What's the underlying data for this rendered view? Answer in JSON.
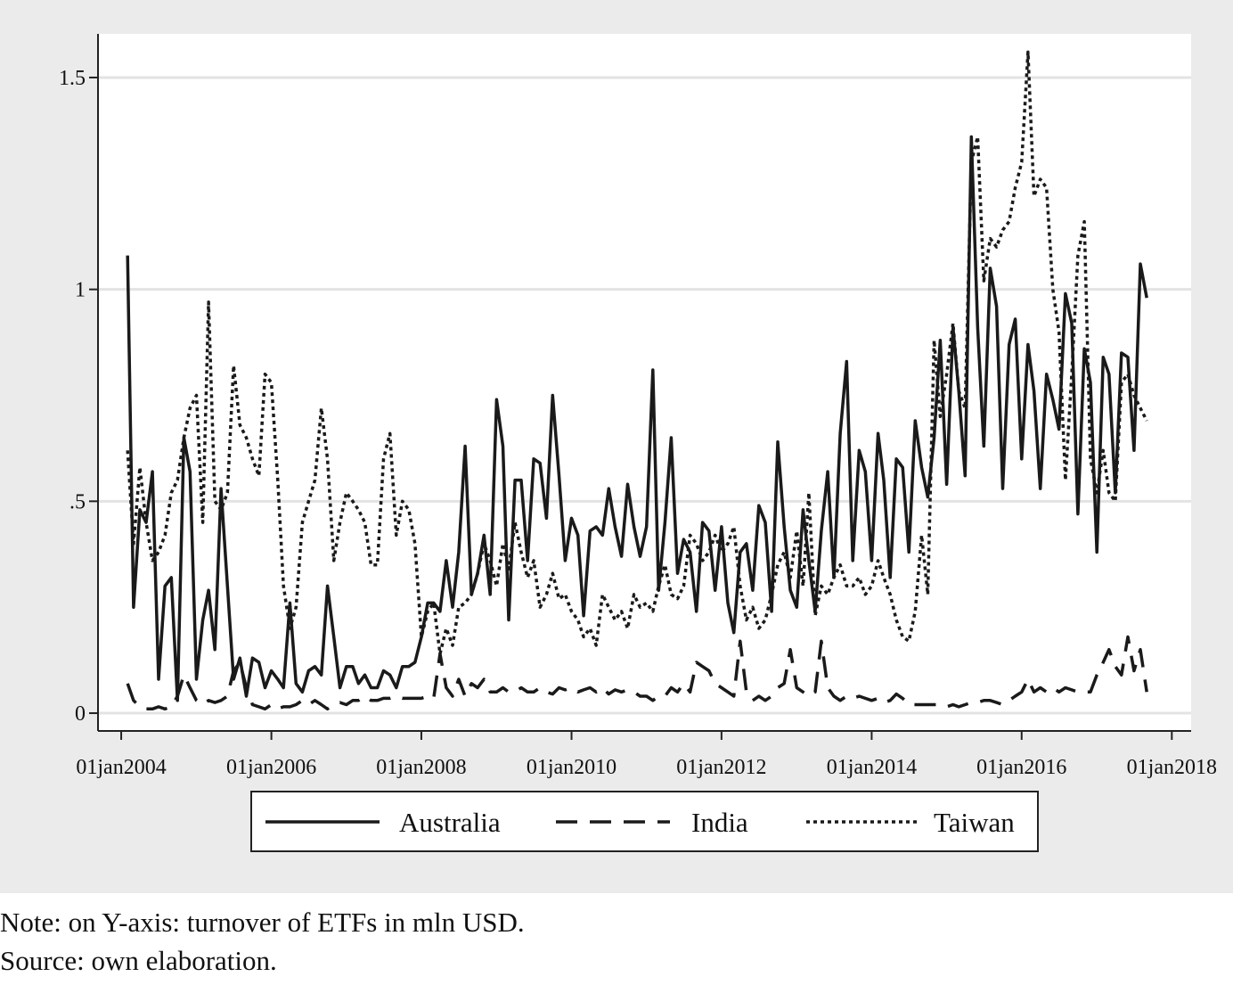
{
  "chart_data": {
    "type": "line",
    "notes": [
      "Note: on Y-axis: turnover of ETFs in mln USD.",
      "Source: own elaboration."
    ],
    "x": [
      "2004-02-01",
      "2004-03-01",
      "2004-04-01",
      "2004-05-01",
      "2004-06-01",
      "2004-07-01",
      "2004-08-01",
      "2004-09-01",
      "2004-10-01",
      "2004-11-01",
      "2004-12-01",
      "2005-01-01",
      "2005-02-01",
      "2005-03-01",
      "2005-04-01",
      "2005-05-01",
      "2005-06-01",
      "2005-07-01",
      "2005-08-01",
      "2005-09-01",
      "2005-10-01",
      "2005-11-01",
      "2005-12-01",
      "2006-01-01",
      "2006-02-01",
      "2006-03-01",
      "2006-04-01",
      "2006-05-01",
      "2006-06-01",
      "2006-07-01",
      "2006-08-01",
      "2006-09-01",
      "2006-10-01",
      "2006-11-01",
      "2006-12-01",
      "2007-01-01",
      "2007-02-01",
      "2007-03-01",
      "2007-04-01",
      "2007-05-01",
      "2007-06-01",
      "2007-07-01",
      "2007-08-01",
      "2007-09-01",
      "2007-10-01",
      "2007-11-01",
      "2007-12-01",
      "2008-01-01",
      "2008-02-01",
      "2008-03-01",
      "2008-04-01",
      "2008-05-01",
      "2008-06-01",
      "2008-07-01",
      "2008-08-01",
      "2008-09-01",
      "2008-10-01",
      "2008-11-01",
      "2008-12-01",
      "2009-01-01",
      "2009-02-01",
      "2009-03-01",
      "2009-04-01",
      "2009-05-01",
      "2009-06-01",
      "2009-07-01",
      "2009-08-01",
      "2009-09-01",
      "2009-10-01",
      "2009-11-01",
      "2009-12-01",
      "2010-01-01",
      "2010-02-01",
      "2010-03-01",
      "2010-04-01",
      "2010-05-01",
      "2010-06-01",
      "2010-07-01",
      "2010-08-01",
      "2010-09-01",
      "2010-10-01",
      "2010-11-01",
      "2010-12-01",
      "2011-01-01",
      "2011-02-01",
      "2011-03-01",
      "2011-04-01",
      "2011-05-01",
      "2011-06-01",
      "2011-07-01",
      "2011-08-01",
      "2011-09-01",
      "2011-10-01",
      "2011-11-01",
      "2011-12-01",
      "2012-01-01",
      "2012-02-01",
      "2012-03-01",
      "2012-04-01",
      "2012-05-01",
      "2012-06-01",
      "2012-07-01",
      "2012-08-01",
      "2012-09-01",
      "2012-10-01",
      "2012-11-01",
      "2012-12-01",
      "2013-01-01",
      "2013-02-01",
      "2013-03-01",
      "2013-04-01",
      "2013-05-01",
      "2013-06-01",
      "2013-07-01",
      "2013-08-01",
      "2013-09-01",
      "2013-10-01",
      "2013-11-01",
      "2013-12-01",
      "2014-01-01",
      "2014-02-01",
      "2014-03-01",
      "2014-04-01",
      "2014-05-01",
      "2014-06-01",
      "2014-07-01",
      "2014-08-01",
      "2014-09-01",
      "2014-10-01",
      "2014-11-01",
      "2014-12-01",
      "2015-01-01",
      "2015-02-01",
      "2015-03-01",
      "2015-04-01",
      "2015-05-01",
      "2015-06-01",
      "2015-07-01",
      "2015-08-01",
      "2015-09-01",
      "2015-10-01",
      "2015-11-01",
      "2015-12-01",
      "2016-01-01",
      "2016-02-01",
      "2016-03-01",
      "2016-04-01",
      "2016-05-01",
      "2016-06-01",
      "2016-07-01",
      "2016-08-01",
      "2016-09-01",
      "2016-10-01",
      "2016-11-01",
      "2016-12-01",
      "2017-01-01",
      "2017-02-01",
      "2017-03-01",
      "2017-04-01",
      "2017-05-01",
      "2017-06-01",
      "2017-07-01",
      "2017-08-01",
      "2017-09-01"
    ],
    "series": [
      {
        "name": "Australia",
        "color": "#1a1a1a",
        "dash": "solid",
        "values": [
          1.08,
          0.25,
          0.48,
          0.45,
          0.57,
          0.08,
          0.3,
          0.32,
          0.03,
          0.65,
          0.57,
          0.08,
          0.22,
          0.29,
          0.15,
          0.53,
          0.3,
          0.08,
          0.13,
          0.04,
          0.13,
          0.12,
          0.06,
          0.1,
          0.08,
          0.06,
          0.26,
          0.07,
          0.05,
          0.1,
          0.11,
          0.09,
          0.3,
          0.18,
          0.06,
          0.11,
          0.11,
          0.07,
          0.09,
          0.06,
          0.06,
          0.1,
          0.09,
          0.06,
          0.11,
          0.11,
          0.12,
          0.18,
          0.26,
          0.26,
          0.24,
          0.36,
          0.25,
          0.38,
          0.63,
          0.28,
          0.33,
          0.42,
          0.28,
          0.74,
          0.63,
          0.22,
          0.55,
          0.55,
          0.36,
          0.6,
          0.59,
          0.46,
          0.75,
          0.56,
          0.36,
          0.46,
          0.42,
          0.23,
          0.43,
          0.44,
          0.42,
          0.53,
          0.44,
          0.37,
          0.54,
          0.44,
          0.37,
          0.44,
          0.81,
          0.29,
          0.45,
          0.65,
          0.33,
          0.41,
          0.38,
          0.24,
          0.45,
          0.43,
          0.29,
          0.44,
          0.26,
          0.19,
          0.38,
          0.4,
          0.29,
          0.49,
          0.45,
          0.24,
          0.64,
          0.44,
          0.29,
          0.25,
          0.48,
          0.36,
          0.24,
          0.43,
          0.57,
          0.32,
          0.66,
          0.83,
          0.36,
          0.62,
          0.57,
          0.36,
          0.66,
          0.55,
          0.32,
          0.6,
          0.58,
          0.38,
          0.69,
          0.58,
          0.51,
          0.65,
          0.88,
          0.54,
          0.91,
          0.76,
          0.56,
          1.36,
          0.91,
          0.63,
          1.05,
          0.96,
          0.53,
          0.87,
          0.93,
          0.6,
          0.87,
          0.76,
          0.53,
          0.8,
          0.74,
          0.67,
          0.99,
          0.92,
          0.47,
          0.86,
          0.78,
          0.38,
          0.84,
          0.8,
          0.52,
          0.85,
          0.84,
          0.62,
          1.06,
          0.98
        ]
      },
      {
        "name": "India",
        "color": "#1a1a1a",
        "dash": "dashed",
        "values": [
          0.07,
          0.03,
          0.015,
          0.01,
          0.01,
          0.015,
          0.01,
          0.015,
          0.04,
          0.09,
          0.06,
          0.03,
          0.02,
          0.03,
          0.025,
          0.03,
          0.04,
          0.1,
          0.12,
          0.06,
          0.02,
          0.015,
          0.01,
          0.02,
          0.01,
          0.015,
          0.015,
          0.02,
          0.03,
          0.02,
          0.03,
          0.02,
          0.01,
          0.02,
          0.025,
          0.02,
          0.03,
          0.03,
          0.04,
          0.03,
          0.03,
          0.035,
          0.035,
          0.04,
          0.035,
          0.035,
          0.035,
          0.035,
          0.04,
          0.035,
          0.14,
          0.06,
          0.04,
          0.08,
          0.04,
          0.07,
          0.06,
          0.08,
          0.05,
          0.05,
          0.06,
          0.05,
          0.05,
          0.06,
          0.05,
          0.05,
          0.06,
          0.05,
          0.045,
          0.06,
          0.055,
          0.06,
          0.05,
          0.055,
          0.06,
          0.05,
          0.06,
          0.045,
          0.055,
          0.05,
          0.055,
          0.05,
          0.04,
          0.04,
          0.03,
          0.04,
          0.04,
          0.06,
          0.05,
          0.07,
          0.05,
          0.12,
          0.11,
          0.1,
          0.07,
          0.06,
          0.05,
          0.04,
          0.17,
          0.05,
          0.03,
          0.04,
          0.03,
          0.04,
          0.06,
          0.07,
          0.15,
          0.06,
          0.05,
          0.04,
          0.05,
          0.17,
          0.06,
          0.04,
          0.03,
          0.04,
          0.035,
          0.04,
          0.035,
          0.03,
          0.035,
          0.025,
          0.03,
          0.045,
          0.035,
          0.02,
          0.02,
          0.02,
          0.02,
          0.02,
          0.02,
          0.015,
          0.02,
          0.015,
          0.02,
          0.025,
          0.025,
          0.03,
          0.03,
          0.025,
          0.02,
          0.03,
          0.04,
          0.05,
          0.08,
          0.05,
          0.06,
          0.05,
          0.06,
          0.05,
          0.06,
          0.055,
          0.05,
          0.05,
          0.05,
          0.09,
          0.12,
          0.15,
          0.11,
          0.09,
          0.18,
          0.1,
          0.15,
          0.05
        ]
      },
      {
        "name": "Taiwan",
        "color": "#1a1a1a",
        "dash": "dotted",
        "values": [
          0.62,
          0.4,
          0.58,
          0.45,
          0.36,
          0.38,
          0.42,
          0.52,
          0.55,
          0.65,
          0.72,
          0.75,
          0.45,
          0.97,
          0.5,
          0.48,
          0.52,
          0.82,
          0.68,
          0.65,
          0.6,
          0.56,
          0.8,
          0.78,
          0.55,
          0.3,
          0.2,
          0.25,
          0.45,
          0.5,
          0.55,
          0.72,
          0.6,
          0.36,
          0.45,
          0.52,
          0.5,
          0.48,
          0.45,
          0.35,
          0.35,
          0.6,
          0.66,
          0.42,
          0.5,
          0.48,
          0.4,
          0.18,
          0.24,
          0.26,
          0.14,
          0.2,
          0.16,
          0.25,
          0.26,
          0.28,
          0.33,
          0.4,
          0.36,
          0.3,
          0.4,
          0.34,
          0.45,
          0.38,
          0.32,
          0.36,
          0.25,
          0.28,
          0.33,
          0.27,
          0.28,
          0.24,
          0.22,
          0.18,
          0.2,
          0.16,
          0.28,
          0.25,
          0.22,
          0.24,
          0.2,
          0.28,
          0.25,
          0.26,
          0.24,
          0.3,
          0.35,
          0.28,
          0.27,
          0.3,
          0.42,
          0.4,
          0.36,
          0.38,
          0.42,
          0.38,
          0.4,
          0.44,
          0.3,
          0.22,
          0.25,
          0.2,
          0.22,
          0.28,
          0.35,
          0.38,
          0.32,
          0.43,
          0.3,
          0.52,
          0.23,
          0.3,
          0.28,
          0.32,
          0.35,
          0.3,
          0.3,
          0.32,
          0.28,
          0.3,
          0.36,
          0.32,
          0.28,
          0.22,
          0.18,
          0.17,
          0.24,
          0.42,
          0.28,
          0.88,
          0.7,
          0.8,
          0.92,
          0.76,
          0.72,
          1.3,
          1.36,
          1.02,
          1.12,
          1.1,
          1.14,
          1.16,
          1.24,
          1.3,
          1.56,
          1.22,
          1.26,
          1.24,
          1.0,
          0.9,
          0.55,
          0.8,
          1.08,
          1.16,
          0.6,
          0.52,
          0.62,
          0.52,
          0.5,
          0.78,
          0.8,
          0.75,
          0.72,
          0.69
        ]
      }
    ],
    "xlim": [
      "2003-09-10",
      "2018-04-05"
    ],
    "xticks": [
      {
        "value": "2004-01-01",
        "label": "01jan2004"
      },
      {
        "value": "2006-01-01",
        "label": "01jan2006"
      },
      {
        "value": "2008-01-01",
        "label": "01jan2008"
      },
      {
        "value": "2010-01-01",
        "label": "01jan2010"
      },
      {
        "value": "2012-01-01",
        "label": "01jan2012"
      },
      {
        "value": "2014-01-01",
        "label": "01jan2014"
      },
      {
        "value": "2016-01-01",
        "label": "01jan2016"
      },
      {
        "value": "2018-01-01",
        "label": "01jan2018"
      }
    ],
    "ylim": [
      -0.042,
      1.603
    ],
    "yticks": [
      0,
      {
        "value": 0.5,
        "label": ".5"
      },
      1,
      1.5
    ],
    "grid": true,
    "legend": "bottom"
  }
}
